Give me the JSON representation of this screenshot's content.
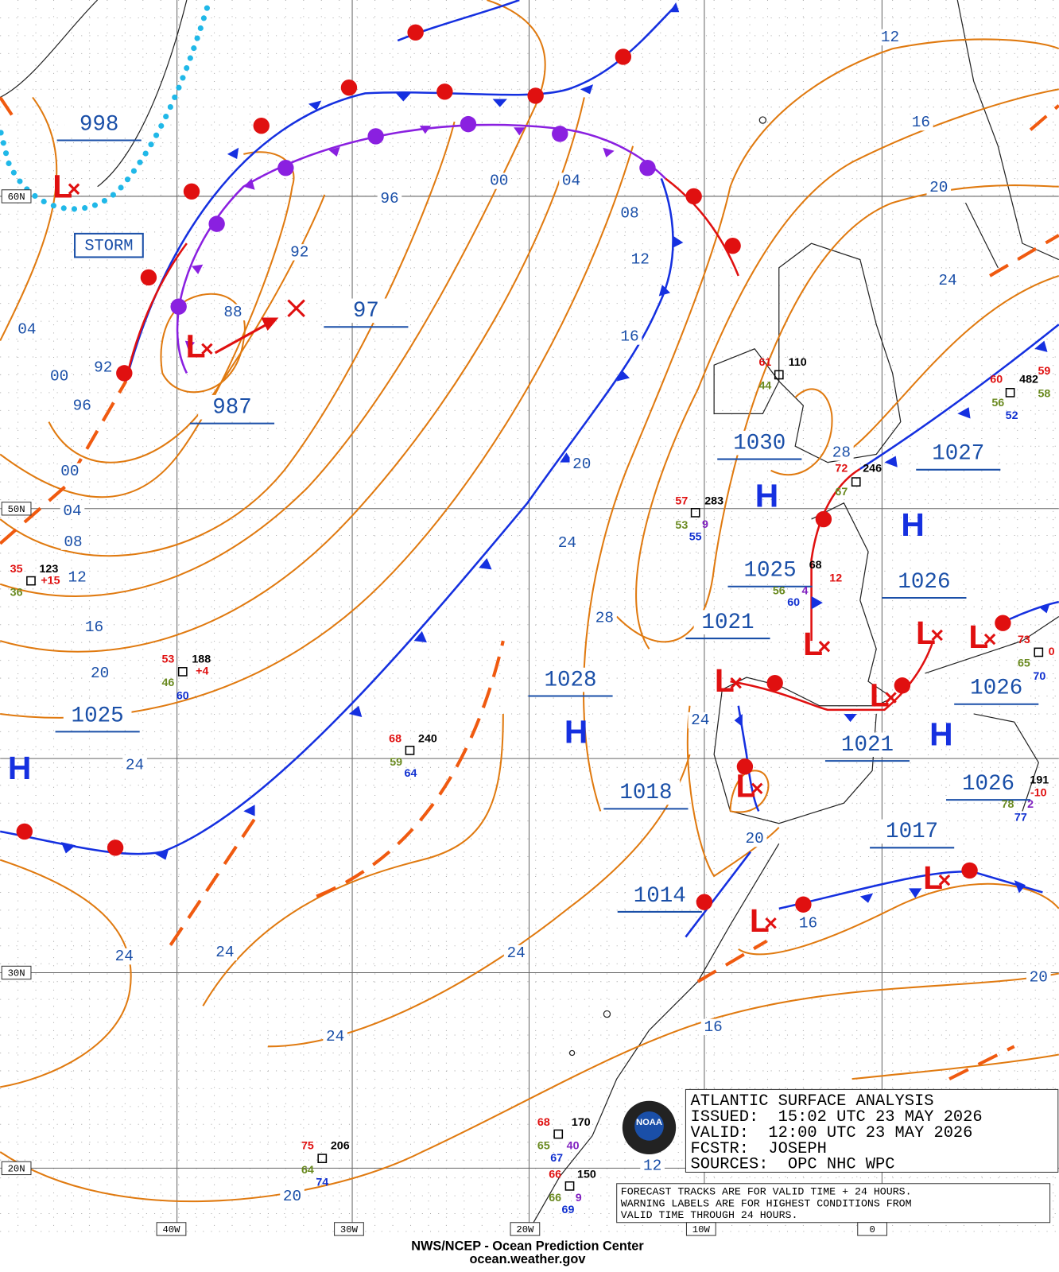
{
  "map": {
    "title_box": [
      "ATLANTIC SURFACE ANALYSIS",
      "ISSUED:  15:02 UTC 23 MAY 2026",
      "VALID:  12:00 UTC 23 MAY 2026",
      "FCSTR:  JOSEPH",
      "SOURCES:  OPC NHC WPC"
    ],
    "notice": [
      "FORECAST TRACKS ARE FOR VALID TIME + 24 HOURS.",
      "WARNING LABELS ARE FOR HIGHEST CONDITIONS FROM",
      "VALID TIME THROUGH 24 HOURS."
    ],
    "footer": [
      "NWS/NCEP - Ocean Prediction Center",
      "ocean.weather.gov"
    ],
    "logo_text": "NOAA",
    "warning": "STORM",
    "grid_labels": [
      "60N",
      "50N",
      "30N",
      "20N",
      "40W",
      "30W",
      "20W",
      "10W",
      "0"
    ],
    "center_pressures": [
      "998",
      "987",
      "97",
      "1030",
      "1027",
      "1025",
      "1026",
      "1021",
      "1028",
      "1026",
      "1025",
      "1021",
      "1018",
      "1026",
      "1017",
      "1014"
    ],
    "highs": [
      "H",
      "H",
      "H",
      "H",
      "H"
    ],
    "lows": [
      "L",
      "L",
      "L",
      "L",
      "L",
      "L",
      "L",
      "L",
      "L",
      "L"
    ],
    "isobar_labels": [
      "12",
      "16",
      "20",
      "24",
      "00",
      "04",
      "08",
      "12",
      "96",
      "92",
      "88",
      "16",
      "04",
      "00",
      "92",
      "96",
      "00",
      "04",
      "08",
      "12",
      "16",
      "20",
      "24",
      "20",
      "24",
      "28",
      "28",
      "24",
      "20",
      "16",
      "20",
      "24",
      "24",
      "24",
      "24",
      "16",
      "12",
      "20"
    ],
    "station_values": [
      {
        "text": "61",
        "color": "#e01010"
      },
      {
        "text": "110",
        "color": "#000"
      },
      {
        "text": "44",
        "color": "#6a8a20"
      },
      {
        "text": "60",
        "color": "#e01010"
      },
      {
        "text": "482",
        "color": "#000"
      },
      {
        "text": "59",
        "color": "#e01010"
      },
      {
        "text": "56",
        "color": "#6a8a20"
      },
      {
        "text": "52",
        "color": "#1030d0"
      },
      {
        "text": "58",
        "color": "#6a8a20"
      },
      {
        "text": "72",
        "color": "#e01010"
      },
      {
        "text": "246",
        "color": "#000"
      },
      {
        "text": "67",
        "color": "#6a8a20"
      },
      {
        "text": "57",
        "color": "#e01010"
      },
      {
        "text": "283",
        "color": "#000"
      },
      {
        "text": "53",
        "color": "#6a8a20"
      },
      {
        "text": "9",
        "color": "#8020c0"
      },
      {
        "text": "55",
        "color": "#1030d0"
      },
      {
        "text": "68",
        "color": "#000"
      },
      {
        "text": "56",
        "color": "#6a8a20"
      },
      {
        "text": "4",
        "color": "#8020c0"
      },
      {
        "text": "60",
        "color": "#1030d0"
      },
      {
        "text": "12",
        "color": "#e01010"
      },
      {
        "text": "35",
        "color": "#e01010"
      },
      {
        "text": "123",
        "color": "#000"
      },
      {
        "text": "36",
        "color": "#6a8a20"
      },
      {
        "text": "+15",
        "color": "#e01010"
      },
      {
        "text": "53",
        "color": "#e01010"
      },
      {
        "text": "188",
        "color": "#000"
      },
      {
        "text": "46",
        "color": "#6a8a20"
      },
      {
        "text": "60",
        "color": "#1030d0"
      },
      {
        "text": "+4",
        "color": "#e01010"
      },
      {
        "text": "68",
        "color": "#e01010"
      },
      {
        "text": "240",
        "color": "#000"
      },
      {
        "text": "59",
        "color": "#6a8a20"
      },
      {
        "text": "64",
        "color": "#1030d0"
      },
      {
        "text": "73",
        "color": "#e01010"
      },
      {
        "text": "0",
        "color": "#e01010"
      },
      {
        "text": "65",
        "color": "#6a8a20"
      },
      {
        "text": "70",
        "color": "#1030d0"
      },
      {
        "text": "191",
        "color": "#000"
      },
      {
        "text": "-10",
        "color": "#e01010"
      },
      {
        "text": "78",
        "color": "#6a8a20"
      },
      {
        "text": "2",
        "color": "#8020c0"
      },
      {
        "text": "77",
        "color": "#1030d0"
      },
      {
        "text": "75",
        "color": "#e01010"
      },
      {
        "text": "206",
        "color": "#000"
      },
      {
        "text": "64",
        "color": "#6a8a20"
      },
      {
        "text": "74",
        "color": "#1030d0"
      },
      {
        "text": "68",
        "color": "#e01010"
      },
      {
        "text": "170",
        "color": "#000"
      },
      {
        "text": "65",
        "color": "#6a8a20"
      },
      {
        "text": "67",
        "color": "#1030d0"
      },
      {
        "text": "40",
        "color": "#8020c0"
      },
      {
        "text": "66",
        "color": "#e01010"
      },
      {
        "text": "150",
        "color": "#000"
      },
      {
        "text": "66",
        "color": "#6a8a20"
      },
      {
        "text": "9",
        "color": "#8020c0"
      },
      {
        "text": "69",
        "color": "#1030d0"
      }
    ]
  }
}
